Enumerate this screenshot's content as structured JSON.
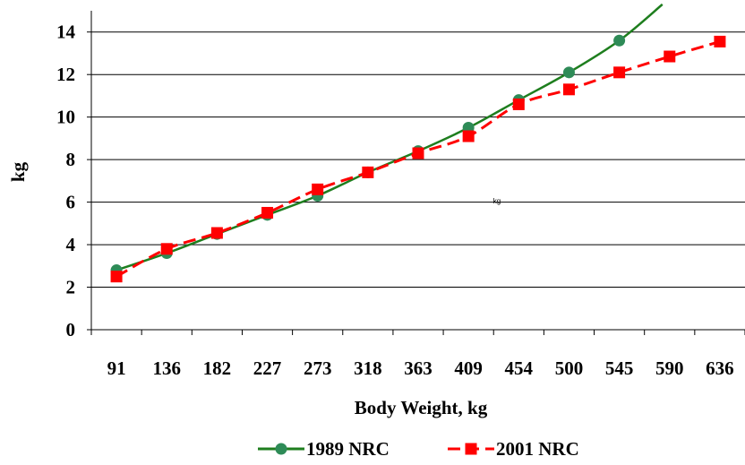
{
  "chart_data": {
    "type": "line",
    "categories": [
      "91",
      "136",
      "182",
      "227",
      "273",
      "318",
      "363",
      "409",
      "454",
      "500",
      "545",
      "590",
      "636"
    ],
    "xlabel": "Body Weight, kg",
    "ylabel": "kg",
    "ylim": [
      0,
      15
    ],
    "yticks": [
      0,
      2,
      4,
      6,
      8,
      10,
      12,
      14
    ],
    "grid": "horizontal",
    "legend_position": "bottom",
    "annotation": "kg",
    "series": [
      {
        "name": "1989 NRC",
        "color": "#2e8b57",
        "line_color": "#1e7e1e",
        "marker": "circle",
        "line_style": "solid",
        "values": [
          2.8,
          3.6,
          4.5,
          5.4,
          6.3,
          7.4,
          8.4,
          9.5,
          10.8,
          12.1,
          13.6,
          null,
          null
        ],
        "trend_end": 15.3
      },
      {
        "name": "2001 NRC",
        "color": "#ff0000",
        "marker": "square",
        "line_style": "dashed",
        "values": [
          2.5,
          3.8,
          4.55,
          5.5,
          6.6,
          7.4,
          8.3,
          9.1,
          10.6,
          11.3,
          12.1,
          12.85,
          13.55
        ]
      }
    ]
  }
}
